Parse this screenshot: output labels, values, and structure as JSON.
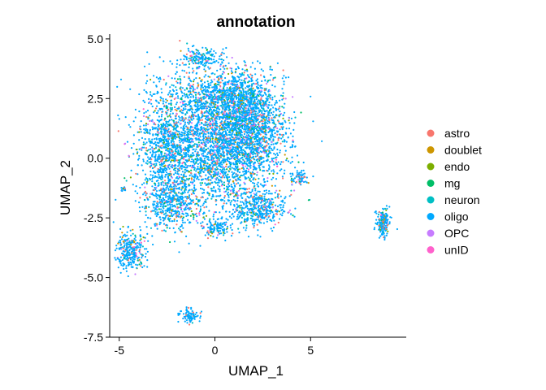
{
  "chart_data": {
    "type": "scatter",
    "title": "annotation",
    "xlabel": "UMAP_1",
    "ylabel": "UMAP_2",
    "xlim": [
      -5.5,
      10.0
    ],
    "ylim": [
      -7.5,
      5.2
    ],
    "xticks": [
      {
        "value": -5,
        "label": "-5"
      },
      {
        "value": 0,
        "label": "0"
      },
      {
        "value": 5,
        "label": "5"
      }
    ],
    "yticks": [
      {
        "value": 5.0,
        "label": "5.0"
      },
      {
        "value": 2.5,
        "label": "2.5"
      },
      {
        "value": 0.0,
        "label": "0.0"
      },
      {
        "value": -2.5,
        "label": "-2.5"
      },
      {
        "value": -5.0,
        "label": "-5.0"
      },
      {
        "value": -7.5,
        "label": "-7.5"
      }
    ],
    "grid": false,
    "legend_position": "right",
    "series": [
      {
        "name": "astro",
        "color": "#F8766D",
        "share": 0.07
      },
      {
        "name": "doublet",
        "color": "#CD9600",
        "share": 0.02
      },
      {
        "name": "endo",
        "color": "#7CAE00",
        "share": 0.03
      },
      {
        "name": "mg",
        "color": "#00BE67",
        "share": 0.03
      },
      {
        "name": "neuron",
        "color": "#00BFC4",
        "share": 0.05
      },
      {
        "name": "oligo",
        "color": "#00A9FF",
        "share": 0.74
      },
      {
        "name": "OPC",
        "color": "#C77CFF",
        "share": 0.04
      },
      {
        "name": "unID",
        "color": "#FF61CC",
        "share": 0.02
      }
    ],
    "clusters": [
      {
        "cx": -0.2,
        "cy": 0.6,
        "sx": 1.9,
        "sy": 1.6,
        "n": 2600
      },
      {
        "cx": 1.8,
        "cy": 1.2,
        "sx": 1.1,
        "sy": 1.2,
        "n": 1300
      },
      {
        "cx": -2.6,
        "cy": 0.3,
        "sx": 0.8,
        "sy": 1.4,
        "n": 700
      },
      {
        "cx": 0.6,
        "cy": 2.6,
        "sx": 1.4,
        "sy": 0.6,
        "n": 700
      },
      {
        "cx": -0.7,
        "cy": 4.2,
        "sx": 0.6,
        "sy": 0.25,
        "n": 160
      },
      {
        "cx": 2.3,
        "cy": -2.1,
        "sx": 0.8,
        "sy": 0.5,
        "n": 400
      },
      {
        "cx": -2.2,
        "cy": -2.0,
        "sx": 0.9,
        "sy": 0.6,
        "n": 350
      },
      {
        "cx": 0.1,
        "cy": -2.9,
        "sx": 0.4,
        "sy": 0.25,
        "n": 120
      },
      {
        "cx": 4.4,
        "cy": -0.8,
        "sx": 0.25,
        "sy": 0.2,
        "n": 60
      },
      {
        "cx": -4.4,
        "cy": -3.9,
        "sx": 0.45,
        "sy": 0.45,
        "n": 280
      },
      {
        "cx": -1.3,
        "cy": -6.6,
        "sx": 0.3,
        "sy": 0.15,
        "n": 90
      },
      {
        "cx": 8.8,
        "cy": -2.7,
        "sx": 0.2,
        "sy": 0.35,
        "n": 180
      },
      {
        "cx": -4.8,
        "cy": -1.3,
        "sx": 0.1,
        "sy": 0.05,
        "n": 20
      }
    ]
  }
}
